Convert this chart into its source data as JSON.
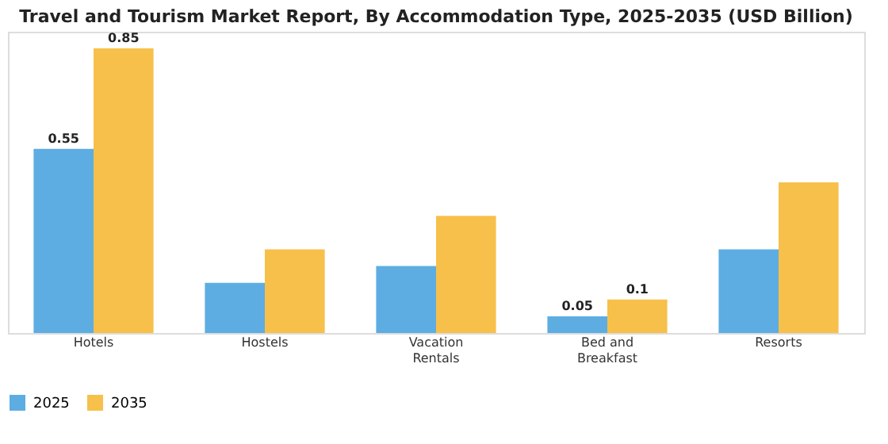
{
  "chart_data": {
    "type": "bar",
    "title": "Travel and Tourism Market Report, By Accommodation Type, 2025-2035 (USD Billion)",
    "categories": [
      "Hotels",
      "Hostels",
      "Vacation Rentals",
      "Bed and Breakfast",
      "Resorts"
    ],
    "series": [
      {
        "name": "2025",
        "color": "#5dade2",
        "values": [
          0.55,
          0.15,
          0.2,
          0.05,
          0.25
        ],
        "value_labels": [
          "0.55",
          null,
          null,
          "0.05",
          null
        ]
      },
      {
        "name": "2035",
        "color": "#f7c04a",
        "values": [
          0.85,
          0.25,
          0.35,
          0.1,
          0.45
        ],
        "value_labels": [
          "0.85",
          null,
          null,
          "0.1",
          null
        ]
      }
    ],
    "ylim": [
      0,
      0.9
    ],
    "tick_labels": "x",
    "grid": false,
    "legend": "bottom"
  }
}
